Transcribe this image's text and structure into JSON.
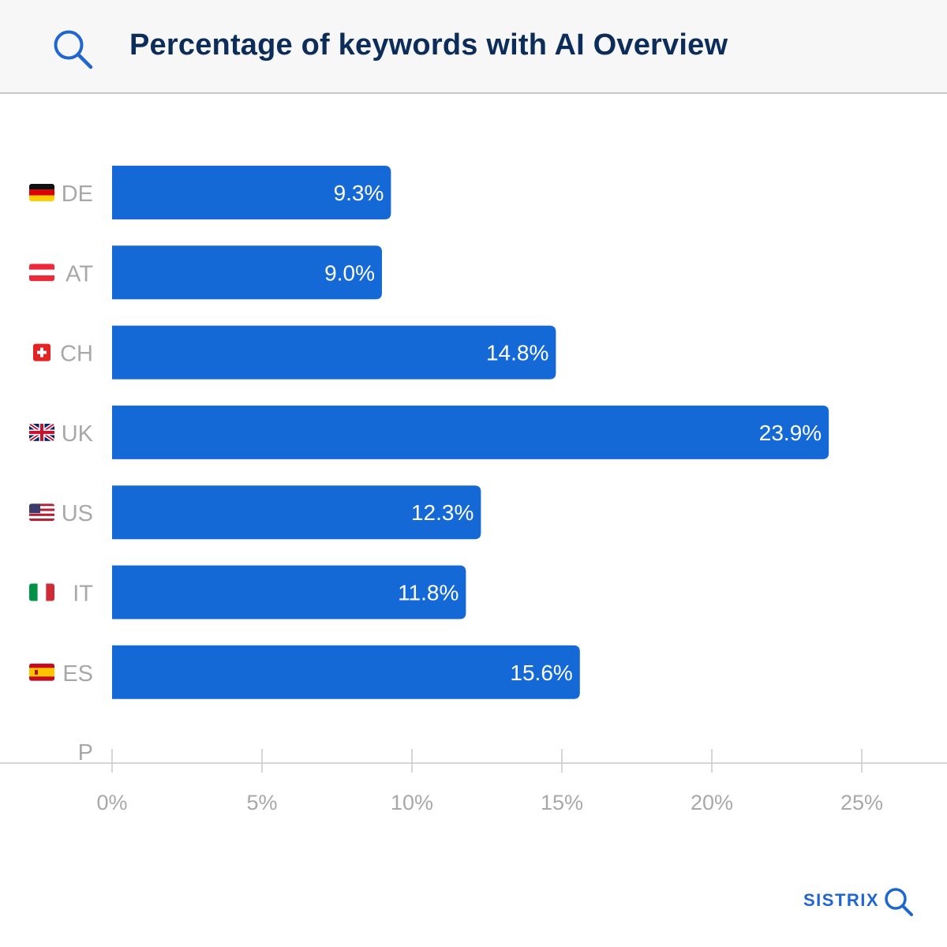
{
  "header": {
    "title": "Percentage of keywords with AI Overview",
    "icon": "search-icon"
  },
  "chart_data": {
    "type": "bar",
    "orientation": "horizontal",
    "title": "Percentage of keywords with AI Overview",
    "categories": [
      "DE",
      "AT",
      "CH",
      "UK",
      "US",
      "IT",
      "ES"
    ],
    "values": [
      9.3,
      9.0,
      14.8,
      23.9,
      12.3,
      11.8,
      15.6
    ],
    "value_labels": [
      "9.3%",
      "9.0%",
      "14.8%",
      "23.9%",
      "12.3%",
      "11.8%",
      "15.6%"
    ],
    "flags": [
      "germany-flag",
      "austria-flag",
      "switzerland-flag",
      "uk-flag",
      "us-flag",
      "italy-flag",
      "spain-flag"
    ],
    "extra_category_label": "P",
    "xlim": [
      0,
      25
    ],
    "xticks": [
      0,
      5,
      10,
      15,
      20,
      25
    ],
    "xtick_labels": [
      "0%",
      "5%",
      "10%",
      "15%",
      "20%",
      "25%"
    ],
    "xlabel": "",
    "ylabel": "",
    "bar_color": "#1569d6",
    "grid": false
  },
  "brand": {
    "name": "SISTRIX",
    "color": "#1f66d1"
  }
}
